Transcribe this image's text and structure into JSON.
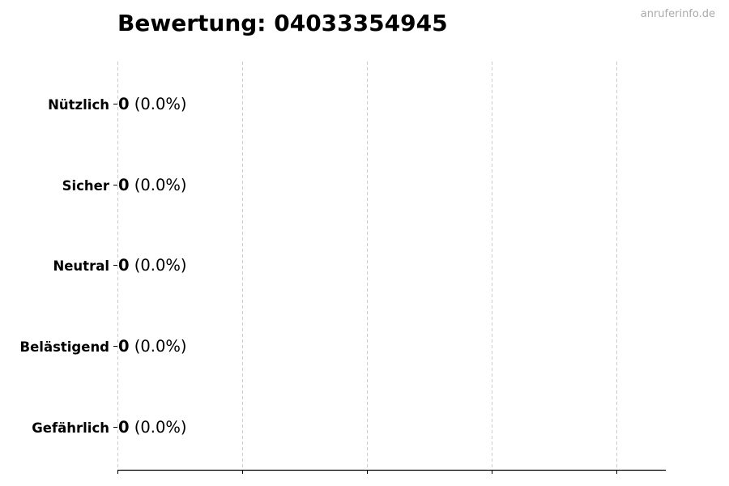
{
  "watermark": "anruferinfo.de",
  "chart_data": {
    "type": "bar",
    "orientation": "horizontal",
    "title": "Bewertung: 04033354945",
    "categories": [
      "Nützlich",
      "Sicher",
      "Neutral",
      "Belästigend",
      "Gefährlich"
    ],
    "values": [
      0,
      0,
      0,
      0,
      0
    ],
    "percentages": [
      "0.0%",
      "0.0%",
      "0.0%",
      "0.0%",
      "0.0%"
    ],
    "xlabel": "",
    "ylabel": "",
    "grid": "x dashed",
    "x_tick_labels_shown": false,
    "colors": {
      "bar_edge": "#333333",
      "grid": "#cccccc",
      "axis": "#000000"
    }
  }
}
